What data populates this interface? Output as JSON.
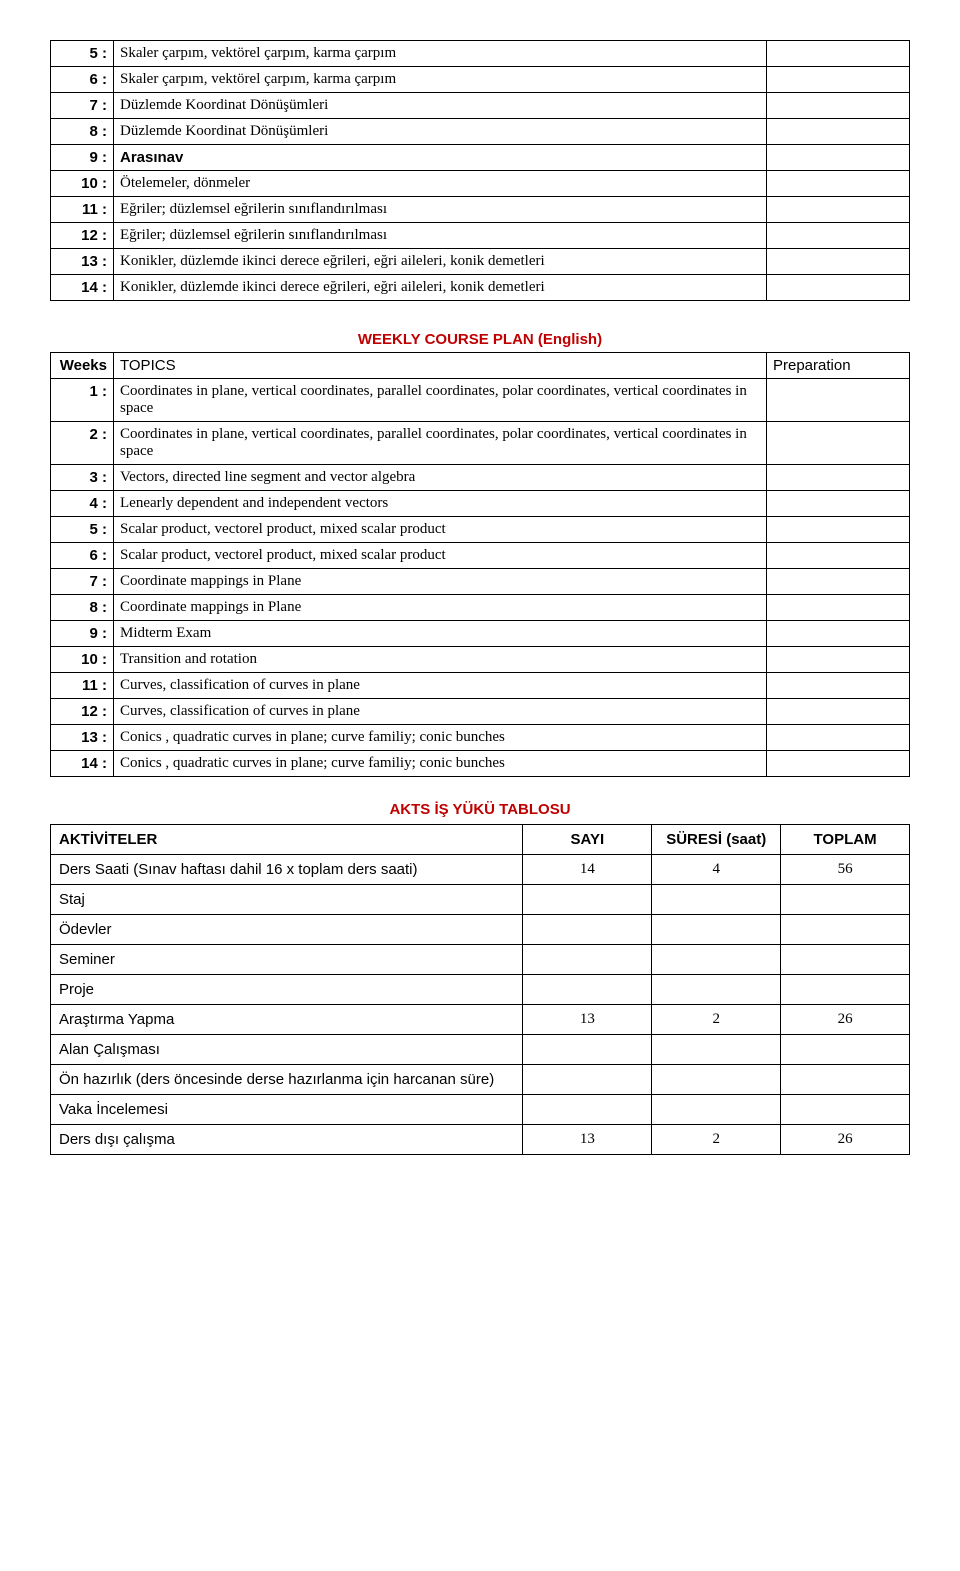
{
  "table1": {
    "prep_col_present": true,
    "rows": [
      {
        "n": "5 :",
        "t": "Skaler çarpım, vektörel çarpım, karma çarpım",
        "bold": false
      },
      {
        "n": "6 :",
        "t": "Skaler çarpım, vektörel çarpım, karma çarpım",
        "bold": false
      },
      {
        "n": "7 :",
        "t": "Düzlemde Koordinat Dönüşümleri",
        "bold": false
      },
      {
        "n": "8 :",
        "t": "Düzlemde Koordinat Dönüşümleri",
        "bold": false
      },
      {
        "n": "9 :",
        "t": "Arasınav",
        "bold": true,
        "sans": true
      },
      {
        "n": "10 :",
        "t": "Ötelemeler, dönmeler",
        "bold": false
      },
      {
        "n": "11 :",
        "t": "Eğriler; düzlemsel eğrilerin sınıflandırılması",
        "bold": false
      },
      {
        "n": "12 :",
        "t": "Eğriler; düzlemsel eğrilerin sınıflandırılması",
        "bold": false
      },
      {
        "n": "13 :",
        "t": "Konikler, düzlemde ikinci derece eğrileri, eğri aileleri, konik demetleri",
        "bold": false
      },
      {
        "n": "14 :",
        "t": "Konikler, düzlemde ikinci derece eğrileri, eğri aileleri, konik demetleri",
        "bold": false
      }
    ]
  },
  "table2": {
    "caption": "WEEKLY COURSE PLAN (English)",
    "headers": {
      "weeks": "Weeks",
      "topics": "TOPICS",
      "prep": "Preparation"
    },
    "rows": [
      {
        "n": "1 :",
        "t": "Coordinates in plane, vertical coordinates, parallel coordinates, polar coordinates, vertical coordinates in space"
      },
      {
        "n": "2 :",
        "t": "Coordinates in plane, vertical coordinates, parallel coordinates, polar coordinates, vertical coordinates in space"
      },
      {
        "n": "3 :",
        "t": "Vectors, directed line segment and vector algebra"
      },
      {
        "n": "4 :",
        "t": "Lenearly dependent and independent vectors"
      },
      {
        "n": "5 :",
        "t": "Scalar product, vectorel product, mixed scalar product"
      },
      {
        "n": "6 :",
        "t": "Scalar product, vectorel product, mixed scalar product"
      },
      {
        "n": "7 :",
        "t": "Coordinate mappings in Plane"
      },
      {
        "n": "8 :",
        "t": "Coordinate mappings in Plane"
      },
      {
        "n": "9 :",
        "t": "Midterm Exam"
      },
      {
        "n": "10 :",
        "t": "Transition and rotation"
      },
      {
        "n": "11 :",
        "t": "Curves, classification of curves in plane"
      },
      {
        "n": "12 :",
        "t": "Curves, classification of curves in plane"
      },
      {
        "n": "13 :",
        "t": "Conics , quadratic curves in plane; curve familiy; conic bunches"
      },
      {
        "n": "14 :",
        "t": "Conics , quadratic curves in plane; curve familiy; conic bunches"
      }
    ]
  },
  "akts": {
    "caption": "AKTS İŞ YÜKÜ TABLOSU",
    "headers": {
      "act": "AKTİVİTELER",
      "count": "SAYI",
      "dur": "SÜRESİ (saat)",
      "total": "TOPLAM"
    },
    "rows": [
      {
        "act": "Ders Saati (Sınav haftası dahil 16 x toplam ders saati)",
        "count": "14",
        "dur": "4",
        "total": "56"
      },
      {
        "act": "Staj",
        "count": "",
        "dur": "",
        "total": ""
      },
      {
        "act": "Ödevler",
        "count": "",
        "dur": "",
        "total": ""
      },
      {
        "act": "Seminer",
        "count": "",
        "dur": "",
        "total": ""
      },
      {
        "act": "Proje",
        "count": "",
        "dur": "",
        "total": ""
      },
      {
        "act": "Araştırma Yapma",
        "count": "13",
        "dur": "2",
        "total": "26"
      },
      {
        "act": "Alan Çalışması",
        "count": "",
        "dur": "",
        "total": ""
      },
      {
        "act": "Ön hazırlık (ders öncesinde derse hazırlanma için harcanan süre)",
        "count": "",
        "dur": "",
        "total": ""
      },
      {
        "act": "Vaka İncelemesi",
        "count": "",
        "dur": "",
        "total": ""
      },
      {
        "act": "Ders dışı çalışma",
        "count": "13",
        "dur": "2",
        "total": "26"
      }
    ]
  }
}
